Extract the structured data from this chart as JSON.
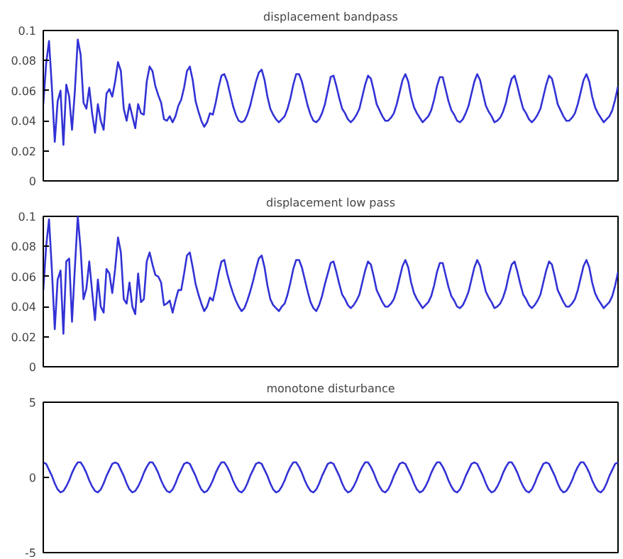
{
  "chart_data": [
    {
      "type": "line",
      "title": "displacement bandpass",
      "ylim": [
        0,
        0.1
      ],
      "yticks": [
        0,
        0.02,
        0.04,
        0.06,
        0.08,
        0.1
      ],
      "tick_labels": "y",
      "grid": false,
      "line_style": "solid",
      "categories": [
        null,
        null,
        null,
        null,
        null,
        null,
        null,
        null,
        null,
        null,
        null,
        null,
        null,
        null,
        null,
        null,
        null,
        null,
        null,
        null,
        null,
        null,
        null,
        null,
        null,
        null,
        null,
        null,
        null,
        null,
        null,
        null,
        null,
        null,
        null,
        null,
        null,
        null,
        null,
        null,
        null,
        null,
        null,
        null,
        null,
        null,
        null,
        null,
        null,
        null,
        null,
        null,
        null,
        null,
        null,
        null,
        null,
        null,
        null,
        null,
        null,
        null,
        null,
        null,
        null,
        null,
        null,
        null,
        null,
        null,
        null,
        null,
        null,
        null,
        null,
        null,
        null,
        null,
        null,
        null,
        null,
        null,
        null,
        null,
        null,
        null,
        null,
        null,
        null,
        null,
        null,
        null,
        null,
        null,
        null,
        null,
        null,
        null,
        null,
        null,
        null,
        null,
        null,
        null,
        null,
        null,
        null,
        null,
        null,
        null,
        null,
        null,
        null,
        null,
        null,
        null,
        null,
        null,
        null,
        null,
        null,
        null,
        null,
        null,
        null,
        null,
        null,
        null,
        null,
        null,
        null,
        null,
        null,
        null,
        null,
        null,
        null,
        null,
        null,
        null,
        null,
        null,
        null,
        null,
        null,
        null,
        null,
        null,
        null,
        null,
        null,
        null,
        null,
        null,
        null,
        null,
        null,
        null,
        null,
        null,
        null,
        null,
        null,
        null,
        null,
        null,
        null,
        null,
        null,
        null,
        null,
        null,
        null,
        null,
        null,
        null,
        null,
        null,
        null,
        null,
        null,
        null,
        null,
        null,
        null,
        null,
        null,
        null,
        null,
        null,
        null,
        null,
        null,
        null,
        null,
        null,
        null,
        null,
        null,
        null,
        null
      ],
      "series": [
        {
          "color": "#3232d6",
          "values": [
            0.051,
            0.078,
            0.093,
            0.062,
            0.026,
            0.053,
            0.06,
            0.024,
            0.064,
            0.056,
            0.034,
            0.06,
            0.094,
            0.084,
            0.052,
            0.048,
            0.062,
            0.045,
            0.032,
            0.051,
            0.04,
            0.034,
            0.058,
            0.061,
            0.056,
            0.066,
            0.079,
            0.073,
            0.048,
            0.04,
            0.051,
            0.043,
            0.035,
            0.051,
            0.045,
            0.044,
            0.066,
            0.076,
            0.073,
            0.063,
            0.057,
            0.052,
            0.041,
            0.04,
            0.043,
            0.039,
            0.043,
            0.05,
            0.054,
            0.062,
            0.073,
            0.076,
            0.067,
            0.053,
            0.046,
            0.04,
            0.036,
            0.039,
            0.045,
            0.044,
            0.052,
            0.062,
            0.07,
            0.071,
            0.066,
            0.058,
            0.05,
            0.044,
            0.04,
            0.039,
            0.04,
            0.044,
            0.05,
            0.058,
            0.066,
            0.072,
            0.074,
            0.067,
            0.056,
            0.048,
            0.044,
            0.041,
            0.039,
            0.041,
            0.043,
            0.048,
            0.055,
            0.064,
            0.071,
            0.071,
            0.066,
            0.058,
            0.05,
            0.044,
            0.04,
            0.039,
            0.041,
            0.045,
            0.051,
            0.06,
            0.069,
            0.07,
            0.063,
            0.055,
            0.048,
            0.045,
            0.041,
            0.039,
            0.041,
            0.044,
            0.048,
            0.056,
            0.064,
            0.07,
            0.068,
            0.06,
            0.051,
            0.047,
            0.043,
            0.04,
            0.04,
            0.042,
            0.045,
            0.051,
            0.059,
            0.067,
            0.071,
            0.066,
            0.056,
            0.049,
            0.045,
            0.042,
            0.039,
            0.041,
            0.043,
            0.047,
            0.054,
            0.063,
            0.069,
            0.069,
            0.061,
            0.053,
            0.047,
            0.044,
            0.04,
            0.039,
            0.041,
            0.045,
            0.05,
            0.058,
            0.066,
            0.071,
            0.067,
            0.058,
            0.05,
            0.046,
            0.043,
            0.039,
            0.04,
            0.042,
            0.046,
            0.052,
            0.061,
            0.068,
            0.07,
            0.063,
            0.055,
            0.048,
            0.045,
            0.041,
            0.039,
            0.041,
            0.044,
            0.048,
            0.056,
            0.064,
            0.07,
            0.068,
            0.06,
            0.051,
            0.047,
            0.043,
            0.04,
            0.04,
            0.042,
            0.045,
            0.051,
            0.059,
            0.067,
            0.071,
            0.066,
            0.056,
            0.049,
            0.045,
            0.042,
            0.039,
            0.041,
            0.043,
            0.047,
            0.054,
            0.063
          ]
        }
      ]
    },
    {
      "type": "line",
      "title": "displacement low pass",
      "ylim": [
        0,
        0.1
      ],
      "yticks": [
        0,
        0.02,
        0.04,
        0.06,
        0.08,
        0.1
      ],
      "tick_labels": "y",
      "grid": false,
      "line_style": "solid",
      "categories": [
        null,
        null,
        null,
        null,
        null,
        null,
        null,
        null,
        null,
        null,
        null,
        null,
        null,
        null,
        null,
        null,
        null,
        null,
        null,
        null,
        null,
        null,
        null,
        null,
        null,
        null,
        null,
        null,
        null,
        null,
        null,
        null,
        null,
        null,
        null,
        null,
        null,
        null,
        null,
        null,
        null,
        null,
        null,
        null,
        null,
        null,
        null,
        null,
        null,
        null,
        null,
        null,
        null,
        null,
        null,
        null,
        null,
        null,
        null,
        null,
        null,
        null,
        null,
        null,
        null,
        null,
        null,
        null,
        null,
        null,
        null,
        null,
        null,
        null,
        null,
        null,
        null,
        null,
        null,
        null,
        null,
        null,
        null,
        null,
        null,
        null,
        null,
        null,
        null,
        null,
        null,
        null,
        null,
        null,
        null,
        null,
        null,
        null,
        null,
        null,
        null,
        null,
        null,
        null,
        null,
        null,
        null,
        null,
        null,
        null,
        null,
        null,
        null,
        null,
        null,
        null,
        null,
        null,
        null,
        null,
        null,
        null,
        null,
        null,
        null,
        null,
        null,
        null,
        null,
        null,
        null,
        null,
        null,
        null,
        null,
        null,
        null,
        null,
        null,
        null,
        null,
        null,
        null,
        null,
        null,
        null,
        null,
        null,
        null,
        null,
        null,
        null,
        null,
        null,
        null,
        null,
        null,
        null,
        null,
        null,
        null,
        null,
        null,
        null,
        null,
        null,
        null,
        null,
        null,
        null,
        null,
        null,
        null,
        null,
        null,
        null,
        null,
        null,
        null,
        null,
        null,
        null,
        null,
        null,
        null,
        null,
        null,
        null,
        null,
        null,
        null,
        null,
        null,
        null,
        null,
        null,
        null,
        null,
        null,
        null,
        null
      ],
      "series": [
        {
          "color": "#3232d6",
          "values": [
            0.051,
            0.08,
            0.098,
            0.064,
            0.025,
            0.058,
            0.064,
            0.022,
            0.07,
            0.072,
            0.03,
            0.066,
            0.1,
            0.078,
            0.045,
            0.052,
            0.07,
            0.05,
            0.031,
            0.058,
            0.04,
            0.036,
            0.065,
            0.062,
            0.049,
            0.065,
            0.086,
            0.076,
            0.045,
            0.042,
            0.056,
            0.04,
            0.035,
            0.062,
            0.043,
            0.045,
            0.07,
            0.076,
            0.068,
            0.061,
            0.06,
            0.056,
            0.041,
            0.042,
            0.044,
            0.036,
            0.044,
            0.051,
            0.051,
            0.062,
            0.074,
            0.076,
            0.066,
            0.055,
            0.048,
            0.042,
            0.037,
            0.04,
            0.046,
            0.044,
            0.052,
            0.062,
            0.07,
            0.071,
            0.062,
            0.055,
            0.049,
            0.044,
            0.04,
            0.037,
            0.039,
            0.044,
            0.05,
            0.057,
            0.065,
            0.072,
            0.074,
            0.066,
            0.054,
            0.045,
            0.041,
            0.039,
            0.037,
            0.04,
            0.042,
            0.048,
            0.056,
            0.065,
            0.071,
            0.071,
            0.066,
            0.058,
            0.05,
            0.043,
            0.039,
            0.037,
            0.041,
            0.047,
            0.055,
            0.062,
            0.069,
            0.07,
            0.063,
            0.055,
            0.048,
            0.045,
            0.041,
            0.039,
            0.041,
            0.044,
            0.048,
            0.056,
            0.064,
            0.07,
            0.068,
            0.06,
            0.051,
            0.047,
            0.043,
            0.04,
            0.04,
            0.042,
            0.045,
            0.051,
            0.059,
            0.067,
            0.071,
            0.066,
            0.056,
            0.049,
            0.045,
            0.042,
            0.039,
            0.041,
            0.043,
            0.047,
            0.054,
            0.063,
            0.069,
            0.069,
            0.061,
            0.053,
            0.047,
            0.044,
            0.04,
            0.039,
            0.041,
            0.045,
            0.05,
            0.058,
            0.066,
            0.071,
            0.067,
            0.058,
            0.05,
            0.046,
            0.043,
            0.039,
            0.04,
            0.042,
            0.046,
            0.052,
            0.061,
            0.068,
            0.07,
            0.063,
            0.055,
            0.048,
            0.045,
            0.041,
            0.039,
            0.041,
            0.044,
            0.048,
            0.056,
            0.064,
            0.07,
            0.068,
            0.06,
            0.051,
            0.047,
            0.043,
            0.04,
            0.04,
            0.042,
            0.045,
            0.051,
            0.059,
            0.067,
            0.071,
            0.066,
            0.056,
            0.049,
            0.045,
            0.042,
            0.039,
            0.041,
            0.043,
            0.047,
            0.054,
            0.063
          ]
        }
      ]
    },
    {
      "type": "line",
      "title": "monotone disturbance",
      "ylim": [
        -5,
        5
      ],
      "yticks": [
        -5,
        0,
        5
      ],
      "tick_labels": "y",
      "grid": false,
      "line_style": "solid",
      "categories": [
        null,
        null,
        null,
        null,
        null,
        null,
        null,
        null,
        null,
        null,
        null,
        null,
        null,
        null,
        null,
        null,
        null,
        null,
        null,
        null,
        null,
        null,
        null,
        null,
        null,
        null,
        null,
        null,
        null,
        null,
        null,
        null,
        null,
        null,
        null,
        null,
        null,
        null,
        null,
        null,
        null,
        null,
        null,
        null,
        null,
        null,
        null,
        null,
        null,
        null,
        null,
        null,
        null,
        null,
        null,
        null,
        null,
        null,
        null,
        null,
        null,
        null,
        null,
        null,
        null,
        null,
        null,
        null,
        null,
        null,
        null,
        null,
        null,
        null,
        null,
        null,
        null,
        null,
        null,
        null,
        null,
        null,
        null,
        null,
        null,
        null,
        null,
        null,
        null,
        null,
        null,
        null,
        null,
        null,
        null,
        null,
        null,
        null,
        null,
        null,
        null,
        null,
        null,
        null,
        null,
        null,
        null,
        null,
        null,
        null,
        null,
        null,
        null,
        null,
        null,
        null,
        null,
        null,
        null,
        null,
        null,
        null,
        null,
        null,
        null,
        null,
        null,
        null,
        null,
        null,
        null,
        null,
        null,
        null,
        null,
        null,
        null,
        null,
        null,
        null,
        null,
        null,
        null,
        null,
        null,
        null,
        null,
        null,
        null,
        null,
        null,
        null,
        null,
        null,
        null,
        null,
        null,
        null,
        null,
        null,
        null,
        null,
        null,
        null,
        null,
        null,
        null,
        null,
        null,
        null,
        null,
        null,
        null,
        null,
        null,
        null,
        null,
        null,
        null,
        null,
        null,
        null,
        null,
        null,
        null,
        null,
        null,
        null,
        null,
        null,
        null,
        null,
        null,
        null,
        null,
        null,
        null,
        null,
        null,
        null,
        null
      ],
      "series": [
        {
          "color": "#3232d6",
          "values": [
            1,
            0.9,
            0.5,
            0.1,
            -0.4,
            -0.8,
            -1,
            -0.9,
            -0.6,
            -0.2,
            0.3,
            0.7,
            1,
            1,
            0.7,
            0.3,
            -0.2,
            -0.6,
            -0.9,
            -1,
            -0.8,
            -0.4,
            0.1,
            0.5,
            0.9,
            1,
            0.9,
            0.5,
            0.1,
            -0.4,
            -0.8,
            -1,
            -0.9,
            -0.6,
            -0.2,
            0.3,
            0.7,
            1,
            1,
            0.7,
            0.3,
            -0.2,
            -0.6,
            -0.9,
            -1,
            -0.8,
            -0.4,
            0.1,
            0.5,
            0.9,
            1,
            0.9,
            0.5,
            0.1,
            -0.4,
            -0.8,
            -1,
            -0.9,
            -0.6,
            -0.2,
            0.3,
            0.7,
            1,
            1,
            0.7,
            0.3,
            -0.2,
            -0.6,
            -0.9,
            -1,
            -0.8,
            -0.4,
            0.1,
            0.5,
            0.9,
            1,
            0.9,
            0.5,
            0.1,
            -0.4,
            -0.8,
            -1,
            -0.9,
            -0.6,
            -0.2,
            0.3,
            0.7,
            1,
            1,
            0.7,
            0.3,
            -0.2,
            -0.6,
            -0.9,
            -1,
            -0.8,
            -0.4,
            0.1,
            0.5,
            0.9,
            1,
            0.9,
            0.5,
            0.1,
            -0.4,
            -0.8,
            -1,
            -0.9,
            -0.6,
            -0.2,
            0.3,
            0.7,
            1,
            1,
            0.7,
            0.3,
            -0.2,
            -0.6,
            -0.9,
            -1,
            -0.8,
            -0.4,
            0.1,
            0.5,
            0.9,
            1,
            0.9,
            0.5,
            0.1,
            -0.4,
            -0.8,
            -1,
            -0.9,
            -0.6,
            -0.2,
            0.3,
            0.7,
            1,
            1,
            0.7,
            0.3,
            -0.2,
            -0.6,
            -0.9,
            -1,
            -0.8,
            -0.4,
            0.1,
            0.5,
            0.9,
            1,
            0.9,
            0.5,
            0.1,
            -0.4,
            -0.8,
            -1,
            -0.9,
            -0.6,
            -0.2,
            0.3,
            0.7,
            1,
            1,
            0.7,
            0.3,
            -0.2,
            -0.6,
            -0.9,
            -1,
            -0.8,
            -0.4,
            0.1,
            0.5,
            0.9,
            1,
            0.9,
            0.5,
            0.1,
            -0.4,
            -0.8,
            -1,
            -0.9,
            -0.6,
            -0.2,
            0.3,
            0.7,
            1,
            1,
            0.7,
            0.3,
            -0.2,
            -0.6,
            -0.9,
            -1,
            -0.8,
            -0.4,
            0.1,
            0.5,
            0.9,
            1
          ]
        }
      ]
    }
  ]
}
